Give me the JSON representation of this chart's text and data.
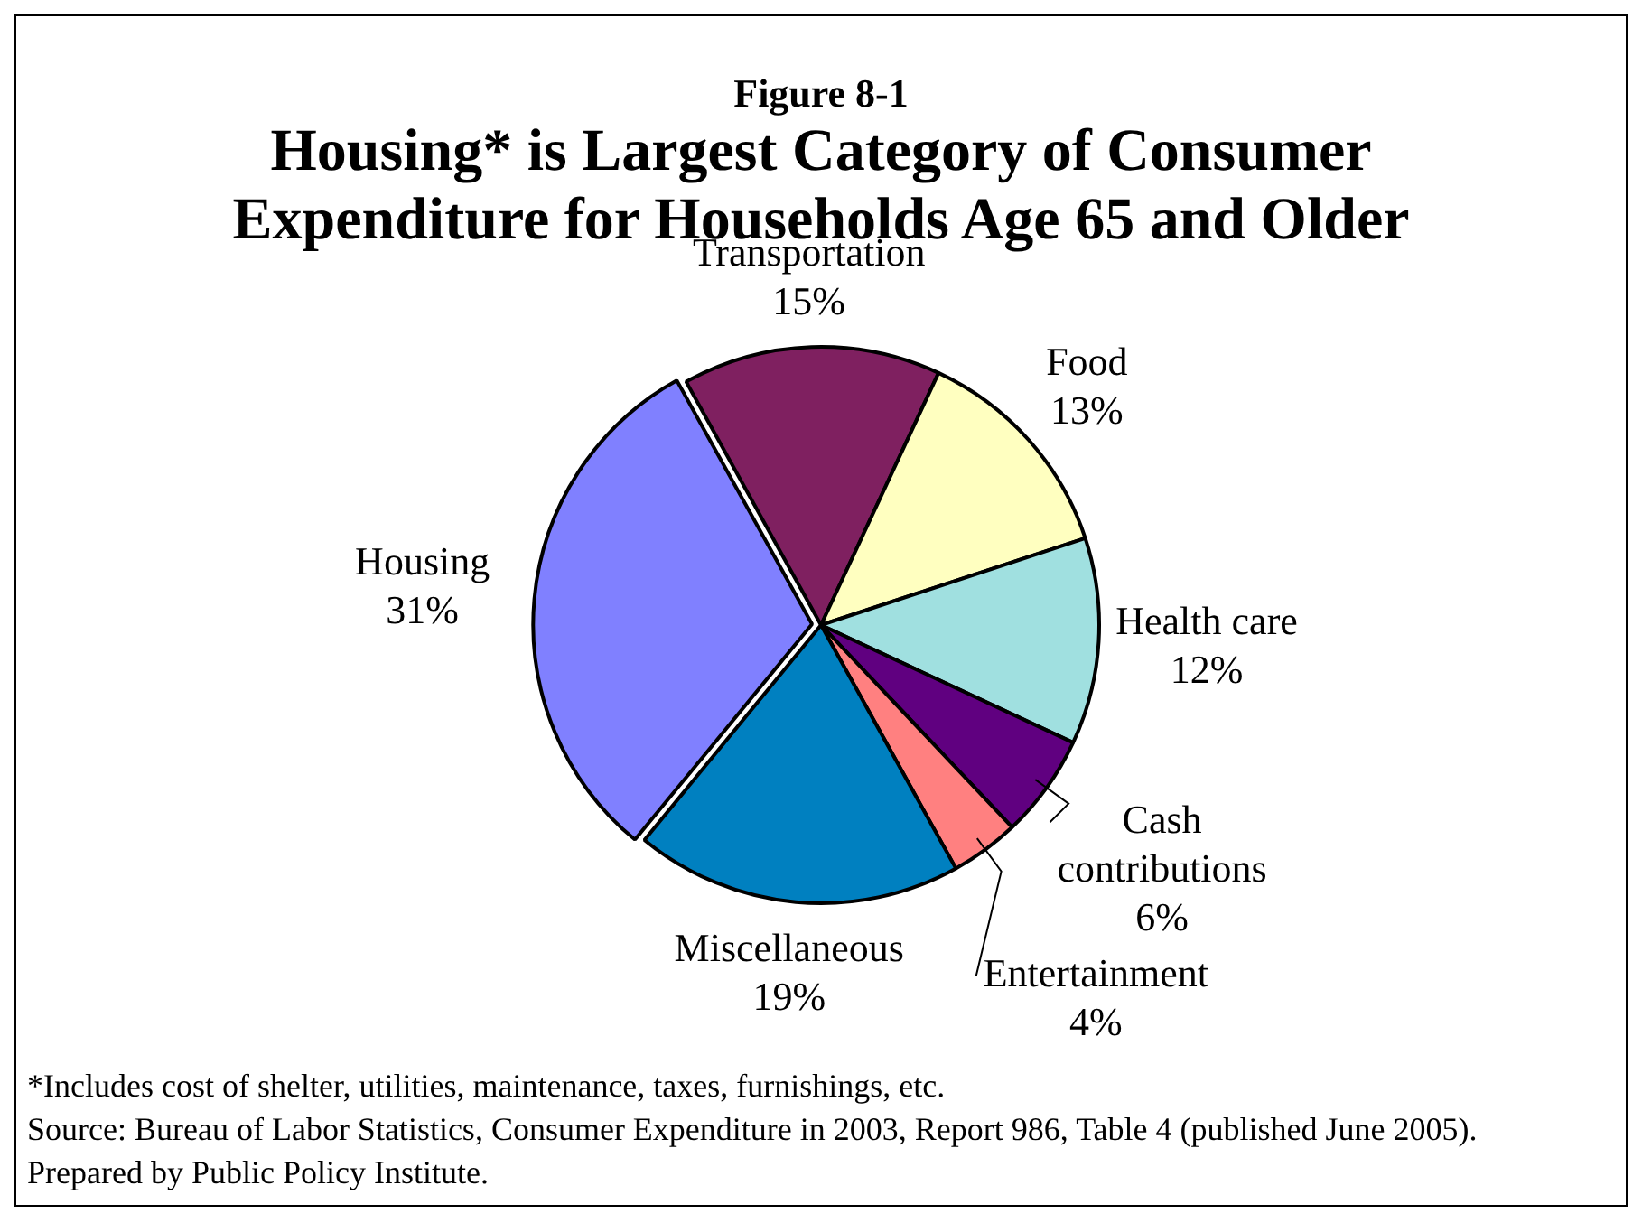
{
  "chart_data": {
    "type": "pie",
    "subtitle": "Figure 8-1",
    "title": "Housing* is Largest Category of Consumer Expenditure for Households Age 65 and Older",
    "categories": [
      "Transportation",
      "Food",
      "Health care",
      "Cash contributions",
      "Entertainment",
      "Miscellaneous",
      "Housing"
    ],
    "values": [
      15,
      13,
      12,
      6,
      4,
      19,
      31
    ],
    "value_labels": [
      "15%",
      "13%",
      "12%",
      "6%",
      "4%",
      "19%",
      "31%"
    ],
    "colors": [
      "#7f2060",
      "#ffffc0",
      "#a0e0e0",
      "#600080",
      "#ff8080",
      "#0080c0",
      "#8080ff"
    ],
    "legend": false,
    "annotations": [
      "*Includes cost of shelter, utilities, maintenance, taxes, furnishings, etc.",
      "Source: Bureau of Labor Statistics, Consumer Expenditure in 2003, Report 986, Table 4 (published June 2005).",
      "Prepared by Public Policy Institute."
    ]
  }
}
